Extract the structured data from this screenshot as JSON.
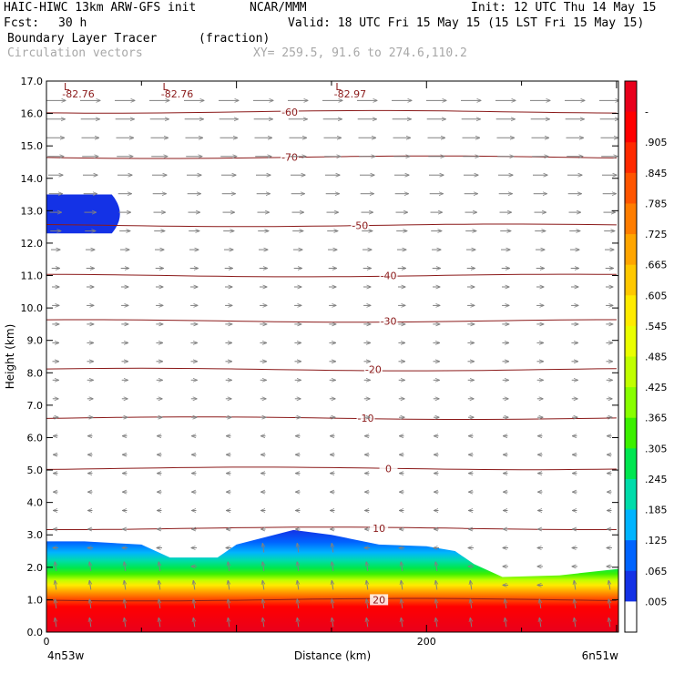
{
  "header": {
    "model": "HAIC-HIWC 13km ARW-GFS init",
    "org": "NCAR/MMM",
    "init": "Init: 12 UTC Thu 14 May 15",
    "fcst_label": "Fcst:",
    "fcst_value": "30 h",
    "valid": "Valid: 18 UTC Fri 15 May 15 (15 LST Fri 15 May 15)",
    "field1_name": "Boundary Layer Tracer",
    "field1_units": "(fraction)",
    "field2_name": "Circulation vectors",
    "xy_range": "XY= 259.5, 91.6 to 274.6,110.2"
  },
  "colors": {
    "contour": "#8b1a1a",
    "vector": "#808080",
    "text_grey": "#a8a8a8"
  },
  "chart_data": {
    "type": "heatmap",
    "xlabel": "Distance (km)",
    "ylabel": "Height (km)",
    "xlim": [
      0,
      301
    ],
    "ylim": [
      0,
      17
    ],
    "x_tick_labels": [
      {
        "x": 0,
        "label": "0"
      },
      {
        "x": 200,
        "label": "200"
      }
    ],
    "x_end_labels": {
      "left": "4n53w",
      "right": "6n51w"
    },
    "y_ticks": [
      0.0,
      1.0,
      2.0,
      3.0,
      4.0,
      5.0,
      6.0,
      7.0,
      8.0,
      9.0,
      10.0,
      11.0,
      12.0,
      13.0,
      14.0,
      15.0,
      16.0,
      17.0
    ],
    "y_tick_labels": [
      "0.0",
      "1.0",
      "2.0",
      "3.0",
      "4.0",
      "5.0",
      "6.0",
      "7.0",
      "8.0",
      "9.0",
      "10.0",
      "11.0",
      "12.0",
      "13.0",
      "14.0",
      "15.0",
      "16.0",
      "17.0"
    ],
    "colorbar": {
      "labels": [
        "-",
        ".905",
        ".845",
        ".785",
        ".725",
        ".665",
        ".605",
        ".545",
        ".485",
        ".425",
        ".365",
        ".305",
        ".245",
        ".185",
        ".125",
        ".065",
        ".005"
      ],
      "colors": [
        "#e8001c",
        "#ff0000",
        "#ff2a00",
        "#ff5500",
        "#ff7d00",
        "#ffa500",
        "#ffc800",
        "#ffeb00",
        "#eaff00",
        "#c0ff00",
        "#88ff00",
        "#3cf000",
        "#00e650",
        "#00dcaa",
        "#00b4ff",
        "#0064ff",
        "#1432e6",
        "#ffffff"
      ]
    },
    "tracer_top_km": [
      {
        "x": 0,
        "z": 2.8
      },
      {
        "x": 20,
        "z": 2.8
      },
      {
        "x": 50,
        "z": 2.7
      },
      {
        "x": 65,
        "z": 2.3
      },
      {
        "x": 90,
        "z": 2.3
      },
      {
        "x": 100,
        "z": 2.7
      },
      {
        "x": 130,
        "z": 3.15
      },
      {
        "x": 150,
        "z": 3.0
      },
      {
        "x": 175,
        "z": 2.7
      },
      {
        "x": 200,
        "z": 2.65
      },
      {
        "x": 215,
        "z": 2.5
      },
      {
        "x": 225,
        "z": 2.1
      },
      {
        "x": 240,
        "z": 1.7
      },
      {
        "x": 270,
        "z": 1.75
      },
      {
        "x": 301,
        "z": 1.95
      }
    ],
    "upper_tracer_blob": {
      "x_end": 43,
      "z_top": 13.5,
      "z_bottom": 12.3
    },
    "contours": [
      {
        "z": 16.05,
        "label": "-60",
        "label_x": 128
      },
      {
        "z": 14.65,
        "label": "-70",
        "label_x": 128
      },
      {
        "z": 12.55,
        "label": "-50",
        "label_x": 165
      },
      {
        "z": 11.0,
        "label": "-40",
        "label_x": 180
      },
      {
        "z": 9.6,
        "label": "-30",
        "label_x": 180
      },
      {
        "z": 8.1,
        "label": "-20",
        "label_x": 172
      },
      {
        "z": 6.6,
        "label": "-10",
        "label_x": 168
      },
      {
        "z": 5.05,
        "label": "0",
        "label_x": 180
      },
      {
        "z": 3.2,
        "label": "10",
        "label_x": 175
      },
      {
        "z": 1.0,
        "label": "20",
        "label_x": 175
      }
    ],
    "lows": [
      {
        "x": 12,
        "label": "-82.76"
      },
      {
        "x": 64,
        "label": "-82.76"
      },
      {
        "x": 155,
        "label": "-82.97"
      }
    ],
    "low_marker": "L"
  }
}
